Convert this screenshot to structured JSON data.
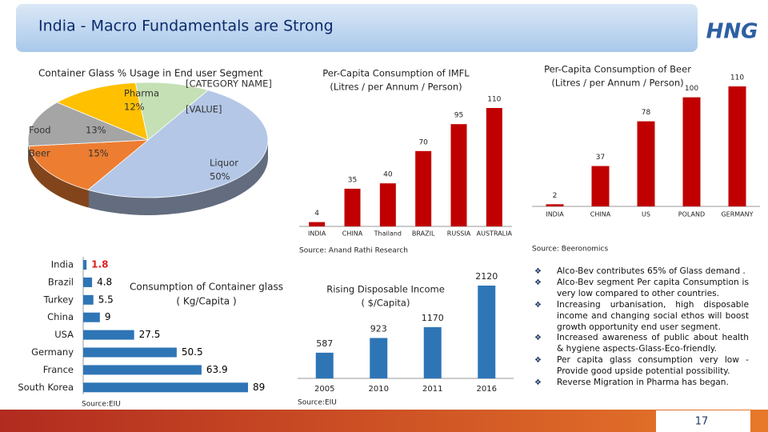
{
  "title": "India - Macro Fundamentals are Strong",
  "logo": "HNG",
  "page_number": "17",
  "bullets": [
    "Alco-Bev contributes 65% of Glass demand .",
    "Alco-Bev segment Per capita Consumption is very low compared to other countries.",
    "Increasing urbanisation, high disposable income and changing social ethos will boost growth opportunity end user segment.",
    "Increased awareness of public about health & hygiene aspects-Glass-Eco-friendly.",
    "Per capita glass consumption very low - Provide good upside potential possibility.",
    "Reverse Migration in Pharma has began."
  ],
  "chart_data": [
    {
      "type": "pie",
      "title": "Container Glass % Usage in  End user Segment",
      "categories": [
        "Liquor",
        "Beer",
        "Food",
        "Pharma",
        "[CATEGORY NAME]"
      ],
      "values": [
        50,
        15,
        13,
        12,
        10
      ],
      "value_labels": [
        "50%",
        "15%",
        "13%",
        "12%",
        "[VALUE]"
      ],
      "colors": [
        "#b4c7e7",
        "#ed7d31",
        "#a5a5a5",
        "#ffc000",
        "#c5e0b4"
      ]
    },
    {
      "type": "bar",
      "title": "Per-Capita Consumption of IMFL",
      "subtitle": "(Litres / per Annum / Person)",
      "categories": [
        "INDIA",
        "CHINA",
        "Thailand",
        "BRAZIL",
        "RUSSIA",
        "AUSTRALIA"
      ],
      "values": [
        4,
        35,
        40,
        70,
        95,
        110
      ],
      "color": "#c00000",
      "source": "Source: Anand Rathi Research"
    },
    {
      "type": "bar",
      "title": "Per-Capita Consumption of Beer",
      "subtitle": "(Litres / per Annum / Person)",
      "categories": [
        "INDIA",
        "CHINA",
        "US",
        "POLAND",
        "GERMANY"
      ],
      "values": [
        2,
        37,
        78,
        100,
        110
      ],
      "color": "#c00000",
      "source": "Source: Beeronomics"
    },
    {
      "type": "bar",
      "horizontal": true,
      "title": "Consumption of Container glass",
      "subtitle": "( Kg/Capita )",
      "categories": [
        "India",
        "Brazil",
        "Turkey",
        "China",
        "USA",
        "Germany",
        "France",
        "South Korea"
      ],
      "values": [
        1.8,
        4.8,
        5.5,
        9,
        27.5,
        50.5,
        63.9,
        89
      ],
      "color": "#2e75b6",
      "value_label_colors": [
        "#e02020",
        "#000000",
        "#000000",
        "#000000",
        "#000000",
        "#000000",
        "#000000",
        "#000000"
      ],
      "source": "Source:EIU"
    },
    {
      "type": "bar",
      "title": "Rising Disposable Income",
      "subtitle": "( $/Capita)",
      "categories": [
        "2005",
        "2010",
        "2011",
        "2016"
      ],
      "values": [
        587,
        923,
        1170,
        2120
      ],
      "color": "#2e75b6",
      "source": "Source:EIU"
    }
  ]
}
